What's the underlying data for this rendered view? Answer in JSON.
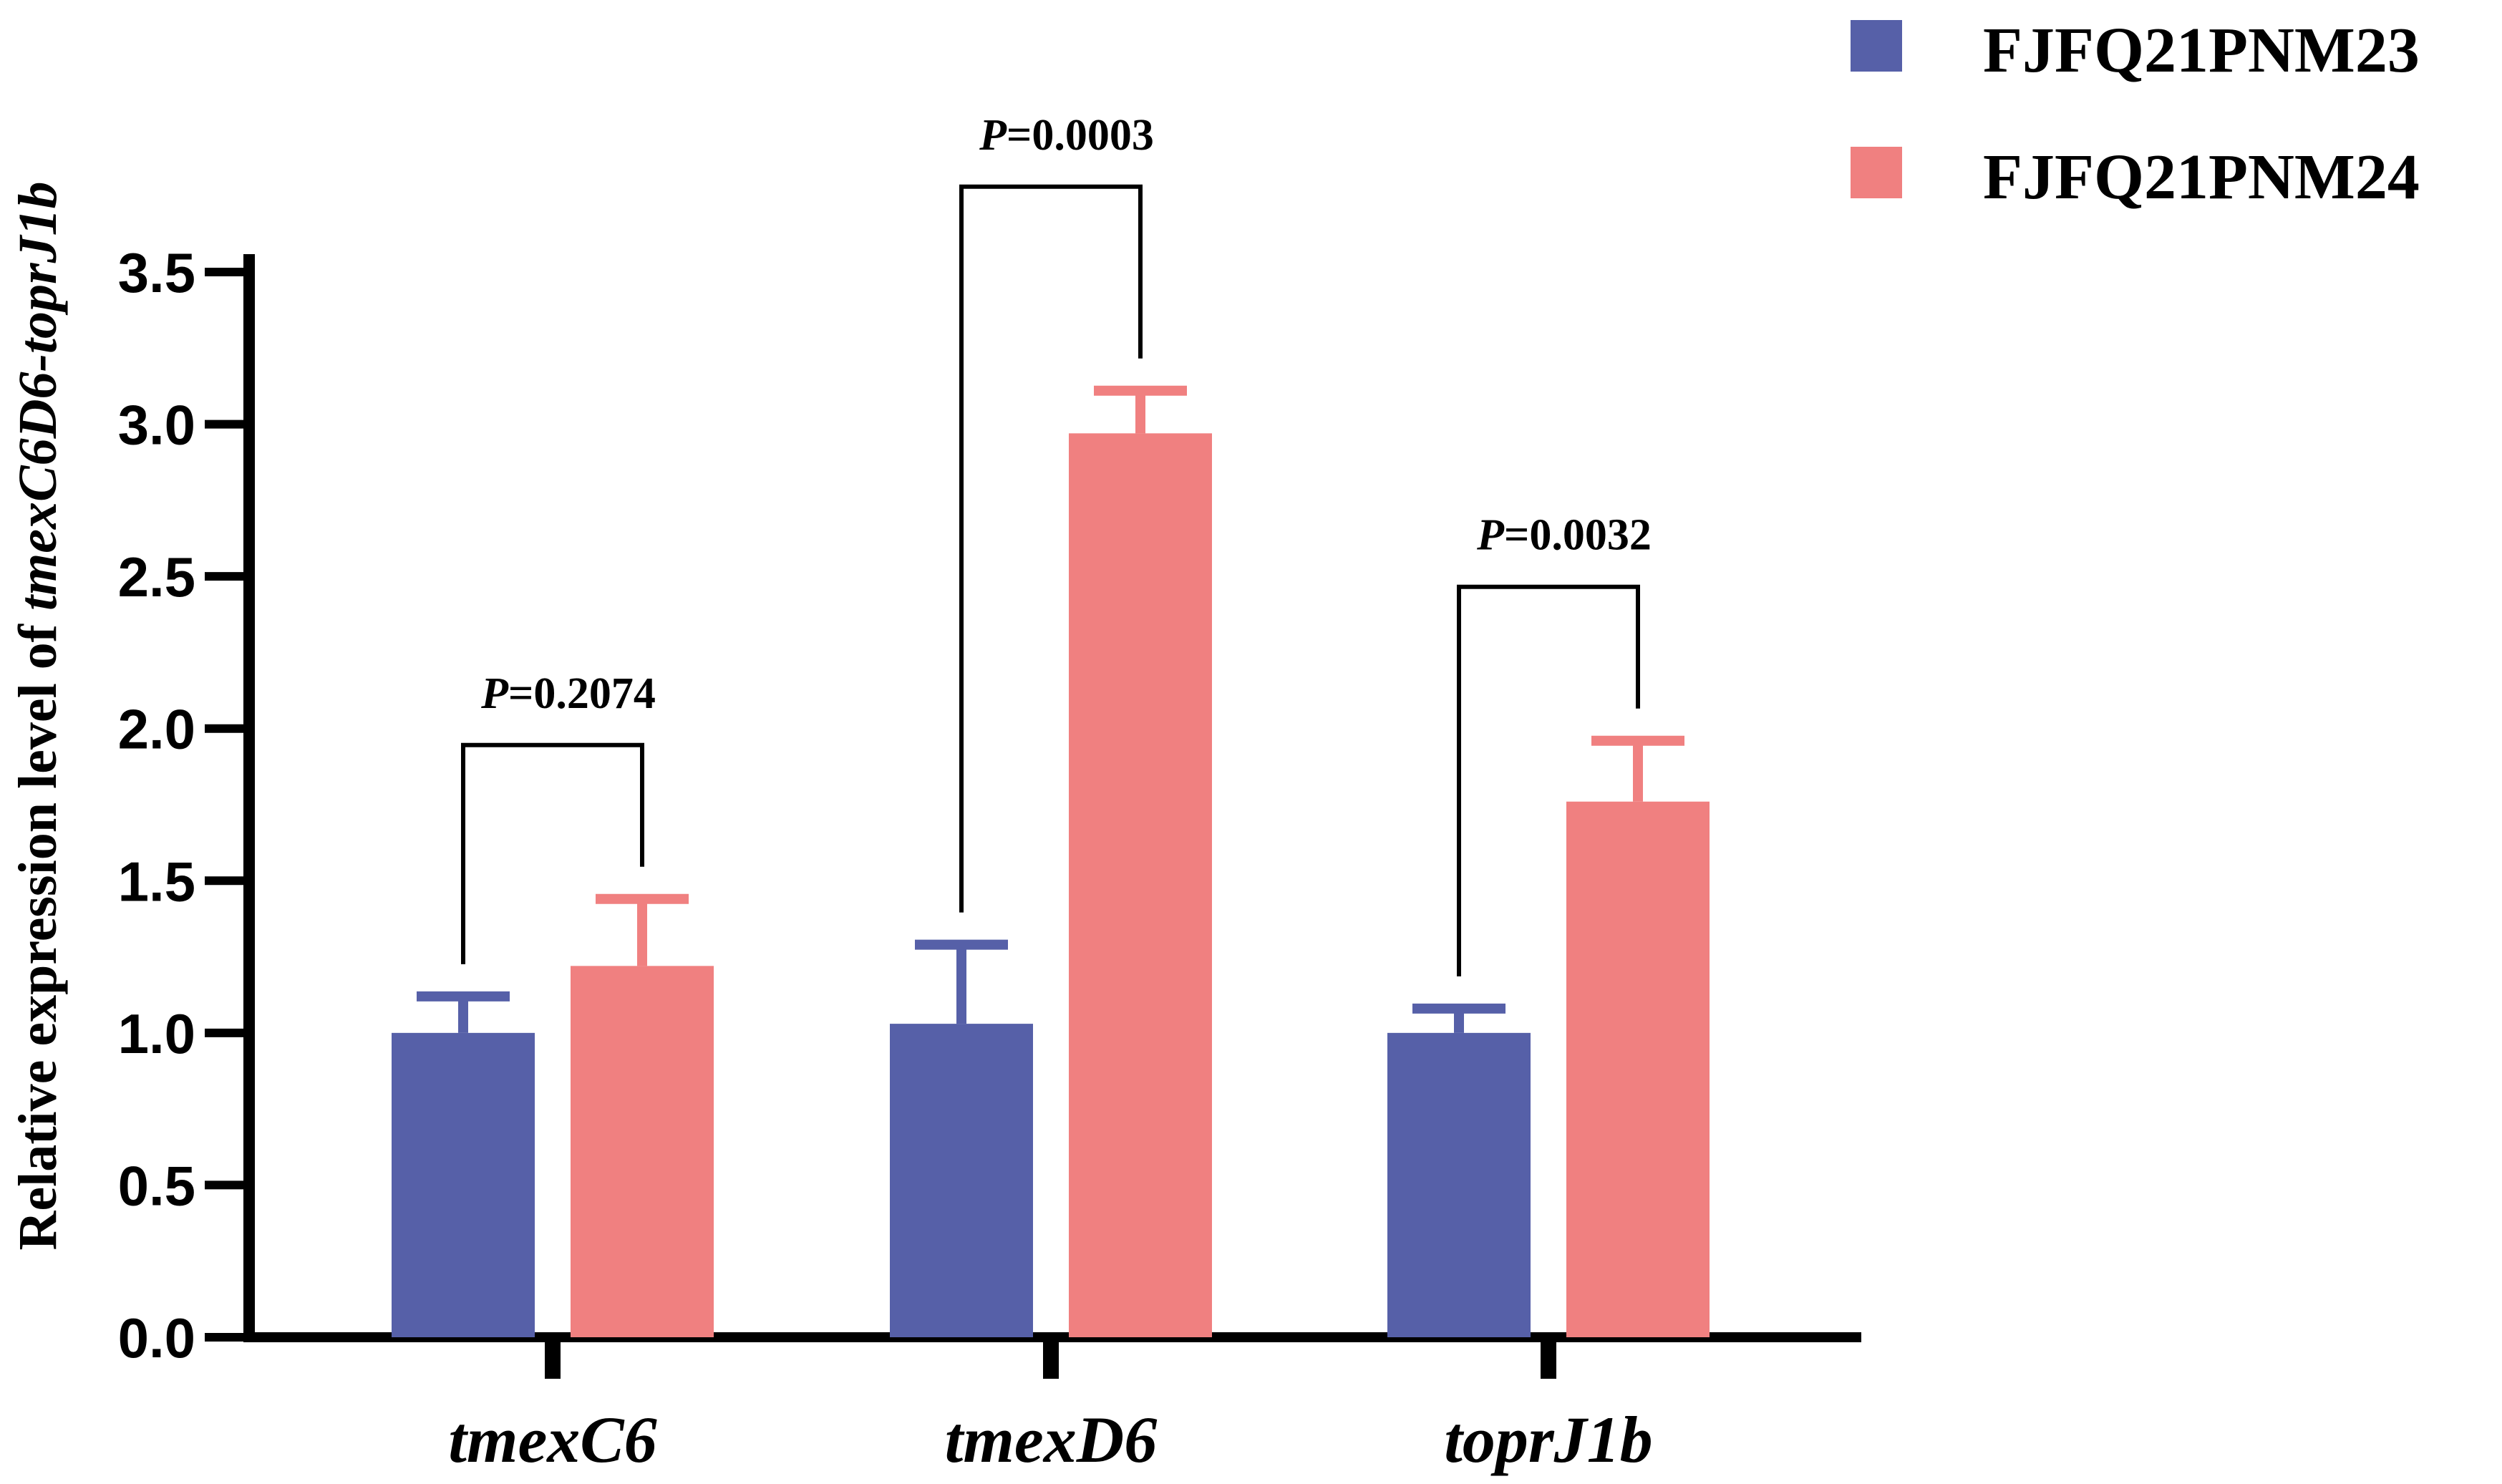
{
  "chart_data": {
    "type": "bar",
    "title": "",
    "xlabel": "",
    "ylabel_prefix": "Relative expression level of ",
    "ylabel_gene": "tmexC6D6-toprJ1b",
    "ylim": [
      0,
      3.5
    ],
    "yticks": [
      "0.0",
      "0.5",
      "1.0",
      "1.5",
      "2.0",
      "2.5",
      "3.0",
      "3.5"
    ],
    "ytick_values": [
      0,
      0.5,
      1.0,
      1.5,
      2.0,
      2.5,
      3.0,
      3.5
    ],
    "categories": [
      "tmexC6",
      "tmexD6",
      "toprJ1b"
    ],
    "legend_position": "top-right",
    "series": [
      {
        "name": "FJFQ21PNM23",
        "color": "#5660A8",
        "values": [
          1.0,
          1.03,
          1.0
        ],
        "errors": [
          0.12,
          0.26,
          0.08
        ]
      },
      {
        "name": "FJFQ21PNM24",
        "color": "#F08080",
        "values": [
          1.22,
          2.97,
          1.76
        ],
        "errors": [
          0.22,
          0.14,
          0.2
        ]
      }
    ],
    "significance": [
      {
        "p_symbol": "P",
        "p_value": "=0.2074"
      },
      {
        "p_symbol": "P",
        "p_value": "=0.0003"
      },
      {
        "p_symbol": "P",
        "p_value": "=0.0032"
      }
    ]
  }
}
